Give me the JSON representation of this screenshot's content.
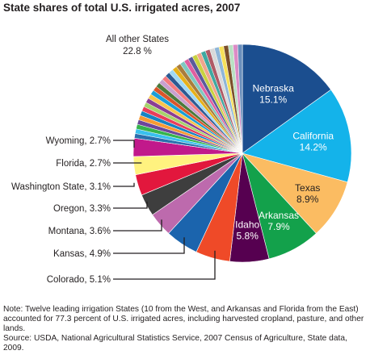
{
  "chart_data": {
    "type": "pie",
    "title": "State shares of total U.S. irrigated acres, 2007",
    "slices": [
      {
        "label": "Nebraska",
        "value": 15.1,
        "color": "#1b4e8f"
      },
      {
        "label": "California",
        "value": 14.2,
        "color": "#14b3ea"
      },
      {
        "label": "Texas",
        "value": 8.9,
        "color": "#fbbc62"
      },
      {
        "label": "Arkansas",
        "value": 7.9,
        "color": "#13a14b"
      },
      {
        "label": "Idaho",
        "value": 5.8,
        "color": "#560050"
      },
      {
        "label": "Colorado",
        "value": 5.1,
        "color": "#ef4a28"
      },
      {
        "label": "Kansas",
        "value": 4.9,
        "color": "#1b64ad"
      },
      {
        "label": "Montana",
        "value": 3.6,
        "color": "#bd6aad"
      },
      {
        "label": "Oregon",
        "value": 3.3,
        "color": "#3e3e3e"
      },
      {
        "label": "Washington State",
        "value": 3.1,
        "color": "#e2173d"
      },
      {
        "label": "Florida",
        "value": 2.7,
        "color": "#fff27f"
      },
      {
        "label": "Wyoming",
        "value": 2.7,
        "color": "#c1198b"
      },
      {
        "label": "All other States",
        "value": 22.8,
        "color": "#a0a0a0"
      }
    ],
    "value_suffix": "%",
    "other_states_stripe_colors": [
      "#2a70ad",
      "#39c0ee",
      "#36b44d",
      "#6d469a",
      "#f79a34",
      "#1783c2",
      "#e83d5b",
      "#a8d36b",
      "#8b3e93",
      "#f7c54b",
      "#1a9fd7",
      "#d9552b",
      "#4b7a3b",
      "#c9a0cf",
      "#f47b80",
      "#2d5b93",
      "#9fd9f5",
      "#e6b11a",
      "#aa7c3b",
      "#7fc8c0",
      "#e05fa0",
      "#5a5a9c",
      "#c8d23f",
      "#f0a58c",
      "#3fa9a1",
      "#b05a66",
      "#d9d9d9",
      "#8fb6d8",
      "#f6e05a",
      "#7b4f2a",
      "#b9e1c3",
      "#dc8bc6",
      "#6a8fbc"
    ]
  },
  "notes": {
    "note": "Note: Twelve leading irrigation States (10 from the West, and Arkansas and Florida from the East) accounted for 77.3 percent of U.S. irrigated acres, including harvested cropland, pasture, and other lands.",
    "source": "Source: USDA, National Agricultural Statistics Service, 2007 Census of Agriculture, State data, 2009."
  }
}
